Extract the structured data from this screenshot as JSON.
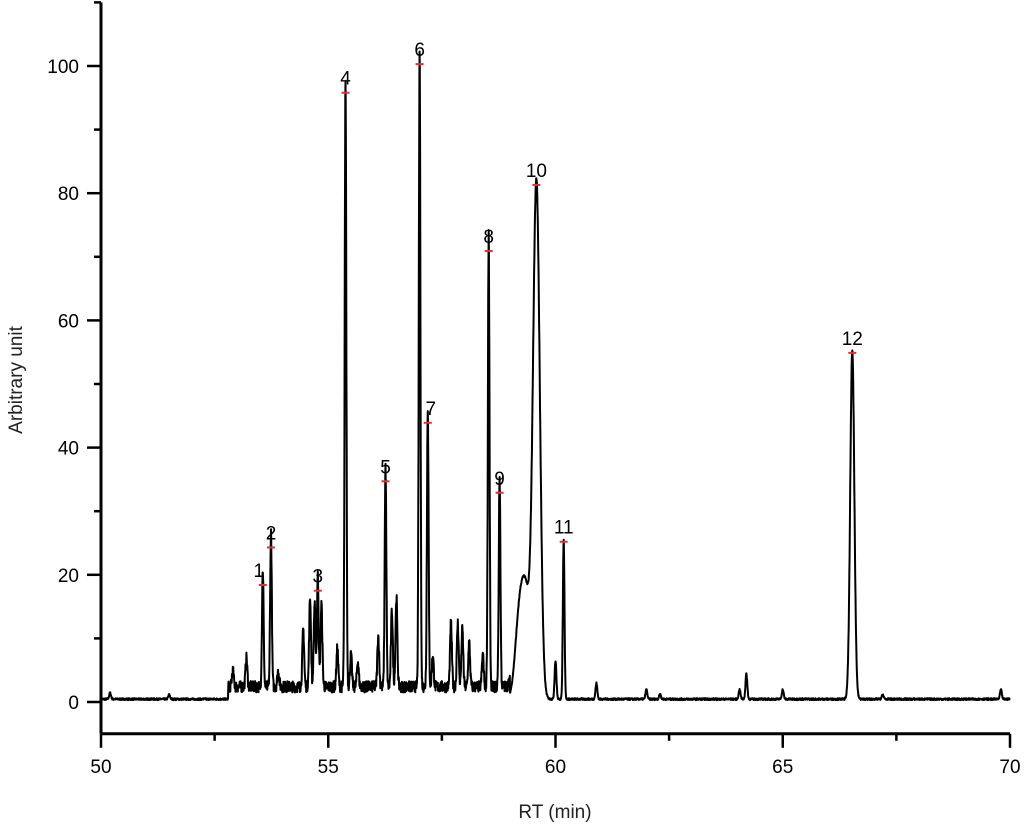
{
  "chart_data": {
    "type": "line",
    "title": "",
    "xlabel": "RT (min)",
    "ylabel": "Arbitrary unit",
    "xlim": [
      50,
      70
    ],
    "ylim": [
      -5,
      110
    ],
    "xticks": [
      50,
      55,
      60,
      65,
      70
    ],
    "yticks": [
      0,
      20,
      40,
      60,
      80,
      100
    ],
    "grid": false,
    "line_color": "#000000",
    "marker_color": "#e03030",
    "labeled_peaks": [
      {
        "label": "1",
        "x": 53.56,
        "y": 18.4
      },
      {
        "label": "2",
        "x": 53.74,
        "y": 24.3
      },
      {
        "label": "3",
        "x": 54.77,
        "y": 17.5
      },
      {
        "label": "4",
        "x": 55.38,
        "y": 95.8
      },
      {
        "label": "5",
        "x": 56.26,
        "y": 34.7
      },
      {
        "label": "6",
        "x": 57.01,
        "y": 100.3
      },
      {
        "label": "7",
        "x": 57.19,
        "y": 43.9
      },
      {
        "label": "8",
        "x": 58.53,
        "y": 70.9
      },
      {
        "label": "9",
        "x": 58.77,
        "y": 32.9
      },
      {
        "label": "10",
        "x": 59.58,
        "y": 81.3
      },
      {
        "label": "11",
        "x": 60.18,
        "y": 25.2
      },
      {
        "label": "12",
        "x": 66.53,
        "y": 54.9
      }
    ],
    "minor_peaks": {
      "x": [
        50.2,
        51.5,
        52.9,
        53.2,
        53.9,
        54.45,
        54.6,
        54.7,
        54.85,
        55.2,
        55.5,
        55.65,
        56.1,
        56.4,
        56.5,
        57.3,
        57.7,
        57.85,
        57.95,
        58.1,
        58.4,
        59.2,
        59.35,
        60.0,
        60.9,
        62.0,
        62.3,
        64.05,
        64.2,
        65.0,
        67.2,
        69.8
      ],
      "y": [
        1,
        0.7,
        2.5,
        4.5,
        2.5,
        9,
        14,
        13,
        13,
        6,
        5,
        4,
        8,
        12,
        14,
        5,
        10,
        10,
        9,
        7,
        5,
        12,
        15,
        6,
        2.5,
        1.5,
        0.8,
        1.5,
        4,
        1.5,
        0.7,
        1.5
      ]
    }
  }
}
